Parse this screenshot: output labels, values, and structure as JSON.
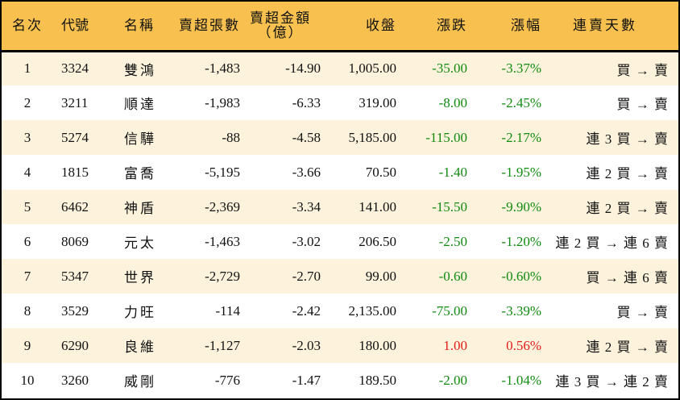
{
  "colors": {
    "header_bg": "#f8c14f",
    "row_odd_bg": "#fdf3dc",
    "row_even_bg": "#ffffff",
    "down": "#118a11",
    "up": "#e41b1b",
    "border": "#000000"
  },
  "table": {
    "headers": {
      "rank": "名次",
      "code": "代號",
      "name": "名稱",
      "net_sell_lots": "賣超張數",
      "net_sell_amount_line1": "賣超金額",
      "net_sell_amount_line2": "（億）",
      "close": "收盤",
      "change": "漲跌",
      "change_pct": "漲幅",
      "consecutive_days": "連賣天數"
    },
    "rows": [
      {
        "rank": "1",
        "code": "3324",
        "name": "雙鴻",
        "net_sell_lots": "-1,483",
        "net_sell_amount": "-14.90",
        "close": "1,005.00",
        "change": "-35.00",
        "change_pct": "-3.37%",
        "direction": "down",
        "consecutive_days": "買 → 賣"
      },
      {
        "rank": "2",
        "code": "3211",
        "name": "順達",
        "net_sell_lots": "-1,983",
        "net_sell_amount": "-6.33",
        "close": "319.00",
        "change": "-8.00",
        "change_pct": "-2.45%",
        "direction": "down",
        "consecutive_days": "買 → 賣"
      },
      {
        "rank": "3",
        "code": "5274",
        "name": "信驊",
        "net_sell_lots": "-88",
        "net_sell_amount": "-4.58",
        "close": "5,185.00",
        "change": "-115.00",
        "change_pct": "-2.17%",
        "direction": "down",
        "consecutive_days": "連 3 買 → 賣"
      },
      {
        "rank": "4",
        "code": "1815",
        "name": "富喬",
        "net_sell_lots": "-5,195",
        "net_sell_amount": "-3.66",
        "close": "70.50",
        "change": "-1.40",
        "change_pct": "-1.95%",
        "direction": "down",
        "consecutive_days": "連 2 買 → 賣"
      },
      {
        "rank": "5",
        "code": "6462",
        "name": "神盾",
        "net_sell_lots": "-2,369",
        "net_sell_amount": "-3.34",
        "close": "141.00",
        "change": "-15.50",
        "change_pct": "-9.90%",
        "direction": "down",
        "consecutive_days": "連 2 買 → 賣"
      },
      {
        "rank": "6",
        "code": "8069",
        "name": "元太",
        "net_sell_lots": "-1,463",
        "net_sell_amount": "-3.02",
        "close": "206.50",
        "change": "-2.50",
        "change_pct": "-1.20%",
        "direction": "down",
        "consecutive_days": "連 2 買 → 連 6 賣"
      },
      {
        "rank": "7",
        "code": "5347",
        "name": "世界",
        "net_sell_lots": "-2,729",
        "net_sell_amount": "-2.70",
        "close": "99.00",
        "change": "-0.60",
        "change_pct": "-0.60%",
        "direction": "down",
        "consecutive_days": "買 → 連 6 賣"
      },
      {
        "rank": "8",
        "code": "3529",
        "name": "力旺",
        "net_sell_lots": "-114",
        "net_sell_amount": "-2.42",
        "close": "2,135.00",
        "change": "-75.00",
        "change_pct": "-3.39%",
        "direction": "down",
        "consecutive_days": "買 → 賣"
      },
      {
        "rank": "9",
        "code": "6290",
        "name": "良維",
        "net_sell_lots": "-1,127",
        "net_sell_amount": "-2.03",
        "close": "180.00",
        "change": "1.00",
        "change_pct": "0.56%",
        "direction": "up",
        "consecutive_days": "連 2 買 → 賣"
      },
      {
        "rank": "10",
        "code": "3260",
        "name": "威剛",
        "net_sell_lots": "-776",
        "net_sell_amount": "-1.47",
        "close": "189.50",
        "change": "-2.00",
        "change_pct": "-1.04%",
        "direction": "down",
        "consecutive_days": "連 3 買 → 連 2 賣"
      }
    ]
  }
}
